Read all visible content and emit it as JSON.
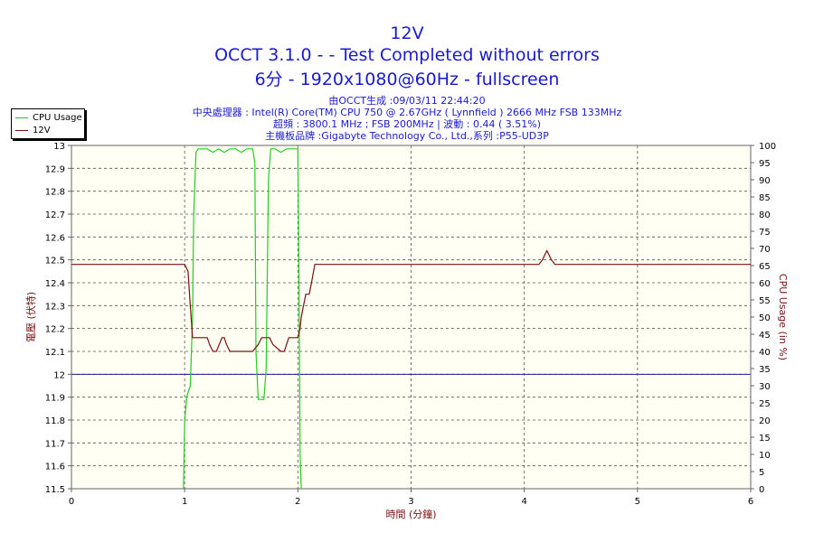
{
  "chart_data": {
    "type": "line",
    "title": "12V",
    "subtitle": "OCCT 3.1.0 -  - Test Completed without errors",
    "subtitle2": "6分 - 1920x1080@60Hz - fullscreen",
    "info_lines": [
      "由OCCT生成 :09/03/11 22:44:20",
      "中央處理器 : Intel(R) Core(TM) CPU 750 @ 2.67GHz ( Lynnfield ) 2666 MHz FSB 133MHz",
      "超頻 : 3800.1 MHz ; FSB 200MHz | 波動 : 0.44 ( 3.51%)",
      "主機板品牌 :Gigabyte Technology Co., Ltd.,系列 :P55-UD3P"
    ],
    "xlabel": "時間 (分鐘)",
    "ylabel_left": "電壓 (伏特)",
    "ylabel_right": "CPU Usage (in %)",
    "xlim": [
      0,
      6
    ],
    "xticks": [
      "0",
      "1",
      "2",
      "3",
      "4",
      "5",
      "6"
    ],
    "ylim_left": [
      11.5,
      13
    ],
    "yticks_left": [
      "11.5",
      "11.6",
      "11.7",
      "11.8",
      "11.9",
      "12",
      "12.1",
      "12.2",
      "12.3",
      "12.4",
      "12.5",
      "12.6",
      "12.7",
      "12.8",
      "12.9",
      "13"
    ],
    "ylim_right": [
      0,
      100
    ],
    "yticks_right": [
      "0",
      "5",
      "10",
      "15",
      "20",
      "25",
      "30",
      "35",
      "40",
      "45",
      "50",
      "55",
      "60",
      "65",
      "70",
      "75",
      "80",
      "85",
      "90",
      "95",
      "100"
    ],
    "reference_line": 12,
    "grid": true,
    "legend_position": "top-left, outside plot",
    "colors": {
      "cpu": "#22cc22",
      "v12": "#7a1010",
      "reference": "#1a1aa0",
      "text": "#1a1ad0",
      "axis_label": "#7a1010"
    },
    "series": [
      {
        "name": "CPU Usage",
        "axis": "right",
        "x": [
          0.99,
          1.0,
          1.02,
          1.03,
          1.05,
          1.07,
          1.08,
          1.1,
          1.12,
          1.15,
          1.2,
          1.25,
          1.3,
          1.35,
          1.4,
          1.45,
          1.5,
          1.55,
          1.6,
          1.62,
          1.63,
          1.65,
          1.7,
          1.72,
          1.74,
          1.76,
          1.8,
          1.85,
          1.9,
          1.95,
          2.0,
          2.01,
          2.02,
          2.03
        ],
        "y": [
          0,
          20,
          27,
          28,
          30,
          50,
          80,
          98,
          99,
          99,
          99,
          98,
          99,
          98,
          99,
          99,
          98,
          99,
          99,
          95,
          40,
          26,
          26,
          35,
          90,
          99,
          99,
          98,
          99,
          99,
          99,
          60,
          10,
          0
        ]
      },
      {
        "name": "12V",
        "axis": "left",
        "x": [
          0,
          1.0,
          1.03,
          1.05,
          1.07,
          1.08,
          1.1,
          1.2,
          1.22,
          1.25,
          1.28,
          1.33,
          1.35,
          1.37,
          1.4,
          1.6,
          1.65,
          1.68,
          1.72,
          1.75,
          1.78,
          1.85,
          1.88,
          1.92,
          1.95,
          2.0,
          2.02,
          2.03,
          2.05,
          2.07,
          2.1,
          2.12,
          2.15,
          4.13,
          4.16,
          4.2,
          4.24,
          4.27,
          6.0
        ],
        "y": [
          12.48,
          12.48,
          12.45,
          12.3,
          12.16,
          12.16,
          12.16,
          12.16,
          12.13,
          12.1,
          12.1,
          12.16,
          12.16,
          12.13,
          12.1,
          12.1,
          12.13,
          12.16,
          12.16,
          12.16,
          12.13,
          12.1,
          12.1,
          12.16,
          12.16,
          12.16,
          12.2,
          12.25,
          12.3,
          12.35,
          12.35,
          12.4,
          12.48,
          12.48,
          12.5,
          12.54,
          12.5,
          12.48,
          12.48
        ]
      }
    ]
  }
}
